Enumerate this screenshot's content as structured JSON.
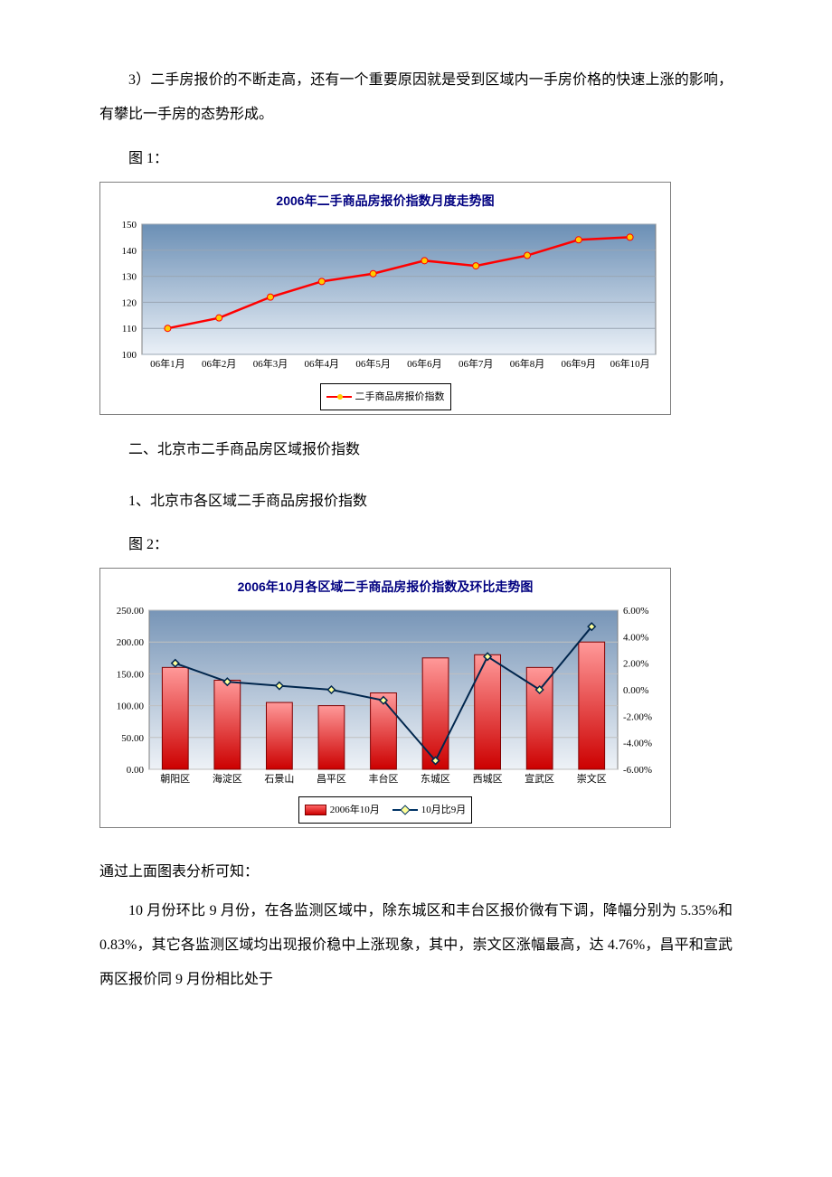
{
  "para1": "3）二手房报价的不断走高，还有一个重要原因就是受到区域内一手房价格的快速上涨的影响，有攀比一手房的态势形成。",
  "fig1_label": "图 1：",
  "chart1": {
    "type": "line",
    "title": "2006年二手商品房报价指数月度走势图",
    "categories": [
      "06年1月",
      "06年2月",
      "06年3月",
      "06年4月",
      "06年5月",
      "06年6月",
      "06年7月",
      "06年8月",
      "06年9月",
      "06年10月"
    ],
    "values": [
      110,
      114,
      122,
      128,
      131,
      136,
      134,
      138,
      144,
      145
    ],
    "ylim": [
      100,
      150
    ],
    "ytick_step": 10,
    "line_color": "#ff0000",
    "marker_color": "#ffcc00",
    "bg_top": "#6b8fb5",
    "bg_bottom": "#eaf0f7",
    "grid_color": "#9aa6b3",
    "legend_label": "二手商品房报价指数"
  },
  "section2_head": "二、北京市二手商品房区域报价指数",
  "section2_sub": "1、北京市各区域二手商品房报价指数",
  "fig2_label": "图 2：",
  "chart2": {
    "type": "bar+line",
    "title": "2006年10月各区域二手商品房报价指数及环比走势图",
    "categories": [
      "朝阳区",
      "海淀区",
      "石景山",
      "昌平区",
      "丰台区",
      "东城区",
      "西城区",
      "宣武区",
      "崇文区"
    ],
    "bar_values": [
      160,
      140,
      105,
      100,
      120,
      175,
      180,
      160,
      200
    ],
    "line_values": [
      2.0,
      0.6,
      0.3,
      0.0,
      -0.8,
      -5.35,
      2.5,
      0.0,
      4.76
    ],
    "y1_lim": [
      0,
      250
    ],
    "y1_tick_step": 50,
    "y2_lim": [
      -6.0,
      6.0
    ],
    "y2_tick_step": 2.0,
    "bar_color_top": "#ff9999",
    "bar_color_bottom": "#cc0000",
    "bar_border": "#800000",
    "line_color": "#00264d",
    "marker_fill": "#ffff99",
    "bg_top": "#7795b7",
    "bg_bottom": "#eef2f7",
    "grid_color": "#bfbfbf",
    "legend_bar": "2006年10月",
    "legend_line": "10月比9月"
  },
  "analysis_head": "通过上面图表分析可知：",
  "para2": "10 月份环比 9 月份，在各监测区域中，除东城区和丰台区报价微有下调，降幅分别为 5.35%和 0.83%，其它各监测区域均出现报价稳中上涨现象，其中，崇文区涨幅最高，达 4.76%，昌平和宣武两区报价同 9 月份相比处于"
}
